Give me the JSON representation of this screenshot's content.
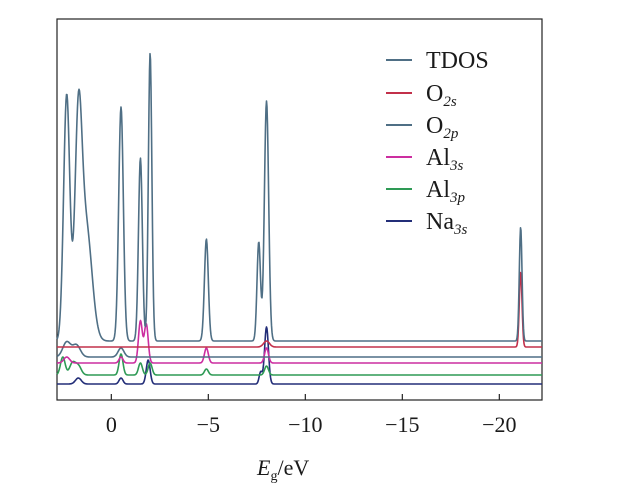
{
  "chart_data": {
    "type": "line",
    "title": "",
    "xlabel_main": "E",
    "xlabel_sub": "g",
    "xlabel_unit": "/eV",
    "xlim": [
      2.8,
      -22.2
    ],
    "x_ticks": [
      0,
      -5,
      -10,
      -15,
      -20
    ],
    "x_tick_labels": [
      "0",
      "−5",
      "−10",
      "−15",
      "−20"
    ],
    "legend_position": "top-right",
    "series": [
      {
        "name": "TDOS",
        "base": "TDOS",
        "sub": "",
        "color": "#4f6f85",
        "peaks": [
          [
            2.3,
            0.82,
            0.16
          ],
          [
            1.7,
            0.67,
            0.18
          ],
          [
            1.3,
            0.38,
            0.3
          ],
          [
            -0.5,
            0.78,
            0.12
          ],
          [
            -1.5,
            0.61,
            0.1
          ],
          [
            -2.0,
            0.96,
            0.09
          ],
          [
            -4.9,
            0.34,
            0.1
          ],
          [
            -7.6,
            0.33,
            0.09
          ],
          [
            -8.0,
            0.8,
            0.11
          ],
          [
            -21.1,
            0.38,
            0.07
          ]
        ]
      },
      {
        "name": "O2s",
        "base": "O",
        "sub": "2s",
        "color": "#c2304a",
        "peaks": [
          [
            -21.1,
            0.25,
            0.07
          ],
          [
            -8.0,
            0.02,
            0.15
          ]
        ]
      },
      {
        "name": "O2p",
        "base": "O",
        "sub": "2p",
        "color": "#4f6f85",
        "peaks": [
          [
            2.3,
            0.05,
            0.2
          ],
          [
            1.8,
            0.04,
            0.2
          ],
          [
            -0.5,
            0.03,
            0.15
          ]
        ]
      },
      {
        "name": "Al3s",
        "base": "Al",
        "sub": "3s",
        "color": "#cc2ea0",
        "peaks": [
          [
            -1.5,
            0.14,
            0.1
          ],
          [
            -1.8,
            0.13,
            0.1
          ],
          [
            -4.9,
            0.05,
            0.1
          ],
          [
            -8.0,
            0.05,
            0.1
          ],
          [
            2.3,
            0.02,
            0.15
          ],
          [
            -0.5,
            0.02,
            0.1
          ]
        ]
      },
      {
        "name": "Al3p",
        "base": "Al",
        "sub": "3p",
        "color": "#2e9a55",
        "peaks": [
          [
            2.5,
            0.06,
            0.12
          ],
          [
            2.0,
            0.04,
            0.15
          ],
          [
            1.7,
            0.03,
            0.15
          ],
          [
            -0.5,
            0.07,
            0.1
          ],
          [
            -1.5,
            0.04,
            0.1
          ],
          [
            -2.0,
            0.04,
            0.1
          ],
          [
            -4.9,
            0.02,
            0.1
          ],
          [
            -8.0,
            0.03,
            0.1
          ]
        ]
      },
      {
        "name": "Na3s",
        "base": "Na",
        "sub": "3s",
        "color": "#232e78",
        "peaks": [
          [
            1.7,
            0.02,
            0.15
          ],
          [
            -0.5,
            0.02,
            0.1
          ],
          [
            -1.9,
            0.08,
            0.1
          ],
          [
            -7.7,
            0.04,
            0.08
          ],
          [
            -8.0,
            0.19,
            0.1
          ]
        ]
      }
    ]
  }
}
